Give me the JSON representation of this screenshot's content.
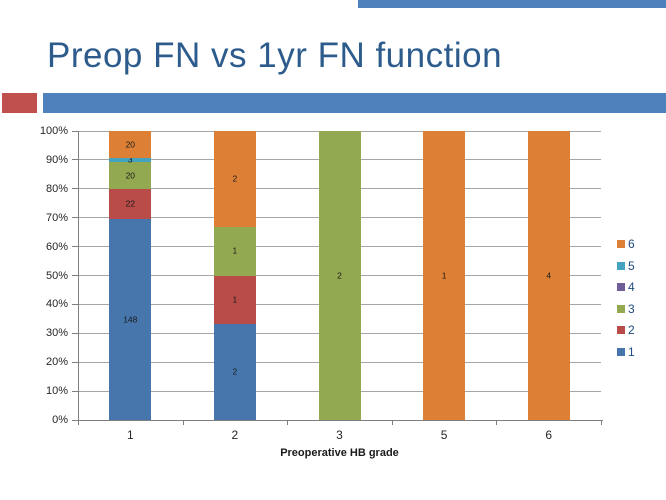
{
  "slide": {
    "title": "Preop FN vs 1yr FN function",
    "title_color": "#2d5c8c",
    "accent_red": "#c0504d",
    "accent_blue": "#4f81bd"
  },
  "chart_data": {
    "type": "bar",
    "variant": "stacked-100-percent",
    "title": "",
    "xlabel": "Preoperative HB grade",
    "ylabel": "",
    "categories": [
      "1",
      "2",
      "3",
      "5",
      "6"
    ],
    "series": [
      {
        "name": "1",
        "color": "#4676ac",
        "values": [
          148,
          2,
          0,
          0,
          0
        ]
      },
      {
        "name": "2",
        "color": "#b94b48",
        "values": [
          22,
          1,
          0,
          0,
          0
        ]
      },
      {
        "name": "3",
        "color": "#93a951",
        "values": [
          20,
          1,
          2,
          0,
          0
        ]
      },
      {
        "name": "4",
        "color": "#6f5c99",
        "values": [
          0,
          0,
          0,
          0,
          0
        ]
      },
      {
        "name": "5",
        "color": "#44a3bf",
        "values": [
          3,
          0,
          0,
          0,
          0
        ]
      },
      {
        "name": "6",
        "color": "#dd8035",
        "values": [
          20,
          2,
          0,
          1,
          4
        ]
      }
    ],
    "y_axis": {
      "min": 0,
      "max": 100,
      "ticks": [
        "0%",
        "10%",
        "20%",
        "30%",
        "40%",
        "50%",
        "60%",
        "70%",
        "80%",
        "90%",
        "100%"
      ]
    },
    "legend": {
      "position": "right",
      "entries": [
        "6",
        "5",
        "4",
        "3",
        "2",
        "1"
      ]
    },
    "grid": true,
    "colors": {
      "gridline": "#a6a6a6",
      "axis": "#7f7f7f",
      "tick_label": "#262626",
      "data_label": "#1a1a1a",
      "legend_text": "#1f497d"
    }
  }
}
